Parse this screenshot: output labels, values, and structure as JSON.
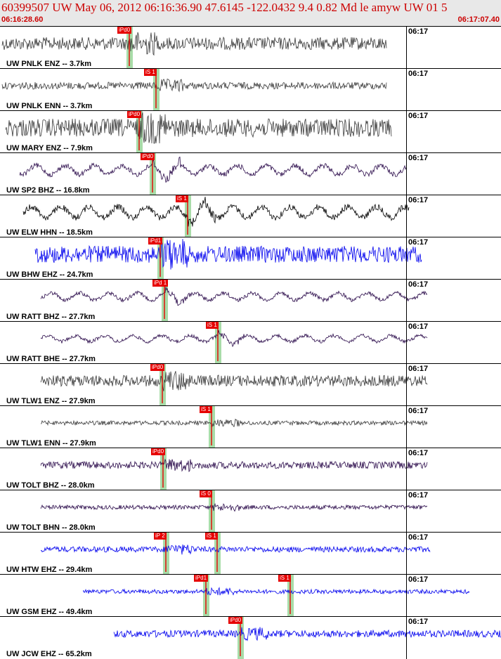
{
  "header": {
    "title": "60399507 UW May 06, 2012 06:16:36.90   47.6145 -122.0432  9.4 0.82 Md le amyw UW 01   5",
    "time_start": "06:16:28.60",
    "time_end": "06:17:07.40"
  },
  "colors": {
    "gray_trace": "#3a3a3a",
    "black_trace": "#000000",
    "purple_trace": "#2a0a4a",
    "blue_trace": "#0000ee",
    "pick": "#e60000",
    "shade": "#a8dca8"
  },
  "traces": [
    {
      "label": "UW PNLK ENZ -- 3.7km",
      "clock": "06:17",
      "color": "gray",
      "start": 3,
      "end": 550,
      "amp": 9,
      "style": "noise",
      "picks": [
        {
          "label": "iPd0",
          "x": 167
        }
      ]
    },
    {
      "label": "UW PNLK ENN -- 3.7km",
      "clock": "06:17",
      "color": "gray",
      "start": 3,
      "end": 550,
      "amp": 5,
      "style": "noise",
      "picks": [
        {
          "label": "iS 1",
          "x": 205
        }
      ]
    },
    {
      "label": "UW MARY ENZ -- 7.9km",
      "clock": "06:17",
      "color": "gray",
      "start": 8,
      "end": 557,
      "amp": 13,
      "style": "noise",
      "picks": [
        {
          "label": "iPd0",
          "x": 181
        }
      ]
    },
    {
      "label": "UW SP2 BHZ -- 16.8km",
      "clock": "06:17",
      "color": "purple",
      "start": 28,
      "end": 578,
      "amp": 9,
      "style": "wave",
      "picks": [
        {
          "label": "iPd0",
          "x": 200
        }
      ]
    },
    {
      "label": "UW ELW HHN -- 18.5km",
      "clock": "06:17",
      "color": "black",
      "start": 33,
      "end": 582,
      "amp": 11,
      "style": "wave",
      "picks": [
        {
          "label": "iS 1",
          "x": 250
        }
      ]
    },
    {
      "label": "UW BHW EHZ -- 24.7km",
      "clock": "06:17",
      "color": "blue",
      "start": 50,
      "end": 600,
      "amp": 12,
      "style": "noise",
      "picks": [
        {
          "label": "iPd1",
          "x": 211
        }
      ]
    },
    {
      "label": "UW RATT BHZ -- 27.7km",
      "clock": "06:17",
      "color": "purple",
      "start": 58,
      "end": 608,
      "amp": 7,
      "style": "wave",
      "picks": [
        {
          "label": "iPd 1",
          "x": 217
        }
      ]
    },
    {
      "label": "UW RATT BHE -- 27.7km",
      "clock": "06:17",
      "color": "purple",
      "start": 58,
      "end": 608,
      "amp": 6,
      "style": "wave",
      "picks": [
        {
          "label": "iS 1",
          "x": 293
        }
      ]
    },
    {
      "label": "UW TLW1 ENZ -- 27.9km",
      "clock": "06:17",
      "color": "gray",
      "start": 58,
      "end": 608,
      "amp": 8,
      "style": "noise",
      "picks": [
        {
          "label": "iPd0",
          "x": 214
        }
      ]
    },
    {
      "label": "UW TLW1 ENN -- 27.9km",
      "clock": "06:17",
      "color": "gray",
      "start": 58,
      "end": 608,
      "amp": 3,
      "style": "noise",
      "picks": [
        {
          "label": "iS 1",
          "x": 284
        }
      ]
    },
    {
      "label": "UW TOLT BHZ -- 28.0km",
      "clock": "06:17",
      "color": "purple",
      "start": 58,
      "end": 608,
      "amp": 5,
      "style": "noise",
      "picks": [
        {
          "label": "iPd0",
          "x": 215
        }
      ]
    },
    {
      "label": "UW TOLT BHN -- 28.0km",
      "clock": "06:17",
      "color": "purple",
      "start": 58,
      "end": 608,
      "amp": 3,
      "style": "noise",
      "picks": [
        {
          "label": "iS 0",
          "x": 284
        }
      ]
    },
    {
      "label": "UW HTW EHZ -- 29.4km",
      "clock": "06:17",
      "color": "blue",
      "start": 58,
      "end": 612,
      "amp": 4,
      "style": "noise",
      "picks": [
        {
          "label": "iP 2",
          "x": 219
        },
        {
          "label": "iS 1",
          "x": 292
        }
      ]
    },
    {
      "label": "UW GSM EHZ -- 49.4km",
      "clock": "06:17",
      "color": "blue",
      "start": 118,
      "end": 668,
      "amp": 3,
      "style": "noise",
      "picks": [
        {
          "label": "iPd1",
          "x": 276
        },
        {
          "label": "iS 1",
          "x": 396
        }
      ]
    },
    {
      "label": "UW JCW EHZ -- 65.2km",
      "clock": "06:17",
      "color": "blue",
      "start": 162,
      "end": 713,
      "amp": 5,
      "style": "noise",
      "picks": [
        {
          "label": "iPd0",
          "x": 325
        }
      ]
    }
  ]
}
